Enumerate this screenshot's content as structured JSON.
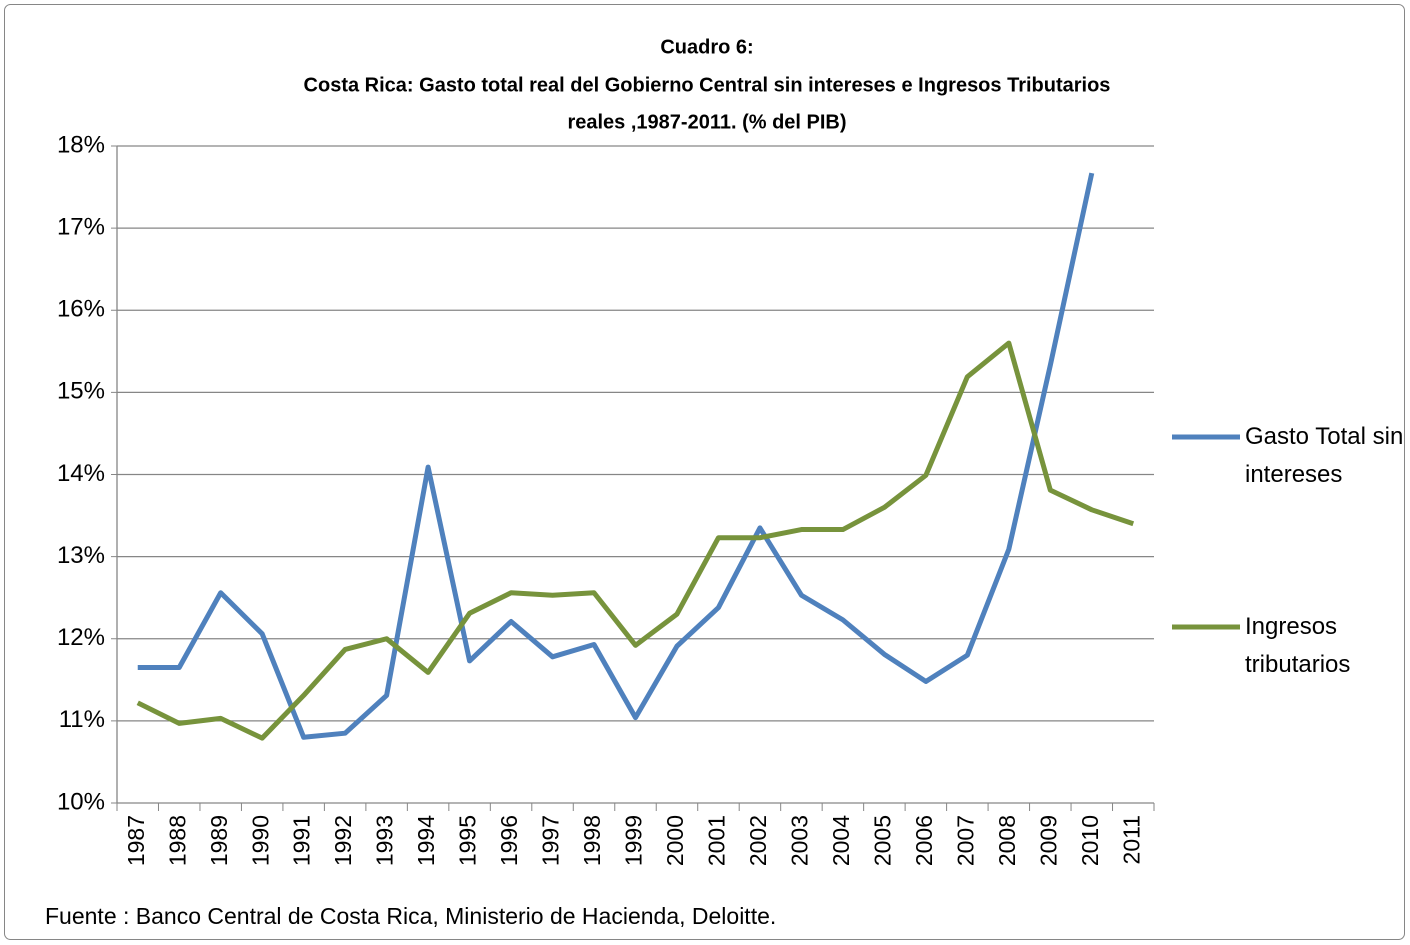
{
  "chart_data": {
    "type": "line",
    "title": [
      "Cuadro 6:",
      "Costa Rica: Gasto total real del Gobierno Central sin intereses e Ingresos Tributarios",
      "reales ,1987-2011.  (% del PIB)"
    ],
    "categories": [
      "1987",
      "1988",
      "1989",
      "1990",
      "1991",
      "1992",
      "1993",
      "1994",
      "1995",
      "1996",
      "1997",
      "1998",
      "1999",
      "2000",
      "2001",
      "2002",
      "2003",
      "2004",
      "2005",
      "2006",
      "2007",
      "2008",
      "2009",
      "2010",
      "2011"
    ],
    "series": [
      {
        "name": "Gasto Total sin intereses",
        "color": "#4f81bd",
        "values": [
          11.65,
          11.65,
          12.56,
          12.06,
          10.8,
          10.85,
          11.31,
          14.09,
          11.73,
          12.21,
          11.78,
          11.93,
          11.04,
          11.91,
          12.38,
          13.35,
          12.53,
          12.23,
          11.81,
          11.48,
          11.8,
          13.09,
          15.33,
          17.67,
          null
        ]
      },
      {
        "name": "Ingresos tributarios",
        "color": "#77933c",
        "values": [
          11.22,
          10.97,
          11.03,
          10.79,
          11.31,
          11.87,
          12.0,
          11.59,
          12.31,
          12.56,
          12.53,
          12.56,
          11.92,
          12.3,
          13.23,
          13.23,
          13.33,
          13.33,
          13.6,
          13.99,
          15.19,
          15.6,
          13.81,
          13.57,
          13.4
        ]
      }
    ],
    "ylim": [
      10,
      18
    ],
    "yticks": [
      {
        "value": 10,
        "label": "10%"
      },
      {
        "value": 11,
        "label": "11%"
      },
      {
        "value": 12,
        "label": "12%"
      },
      {
        "value": 13,
        "label": "13%"
      },
      {
        "value": 14,
        "label": "14%"
      },
      {
        "value": 15,
        "label": "15%"
      },
      {
        "value": 16,
        "label": "16%"
      },
      {
        "value": 17,
        "label": "17%"
      },
      {
        "value": 18,
        "label": "18%"
      }
    ],
    "grid": true,
    "legend": "right",
    "source": "Fuente : Banco Central de Costa Rica, Ministerio de Hacienda, Deloitte."
  }
}
